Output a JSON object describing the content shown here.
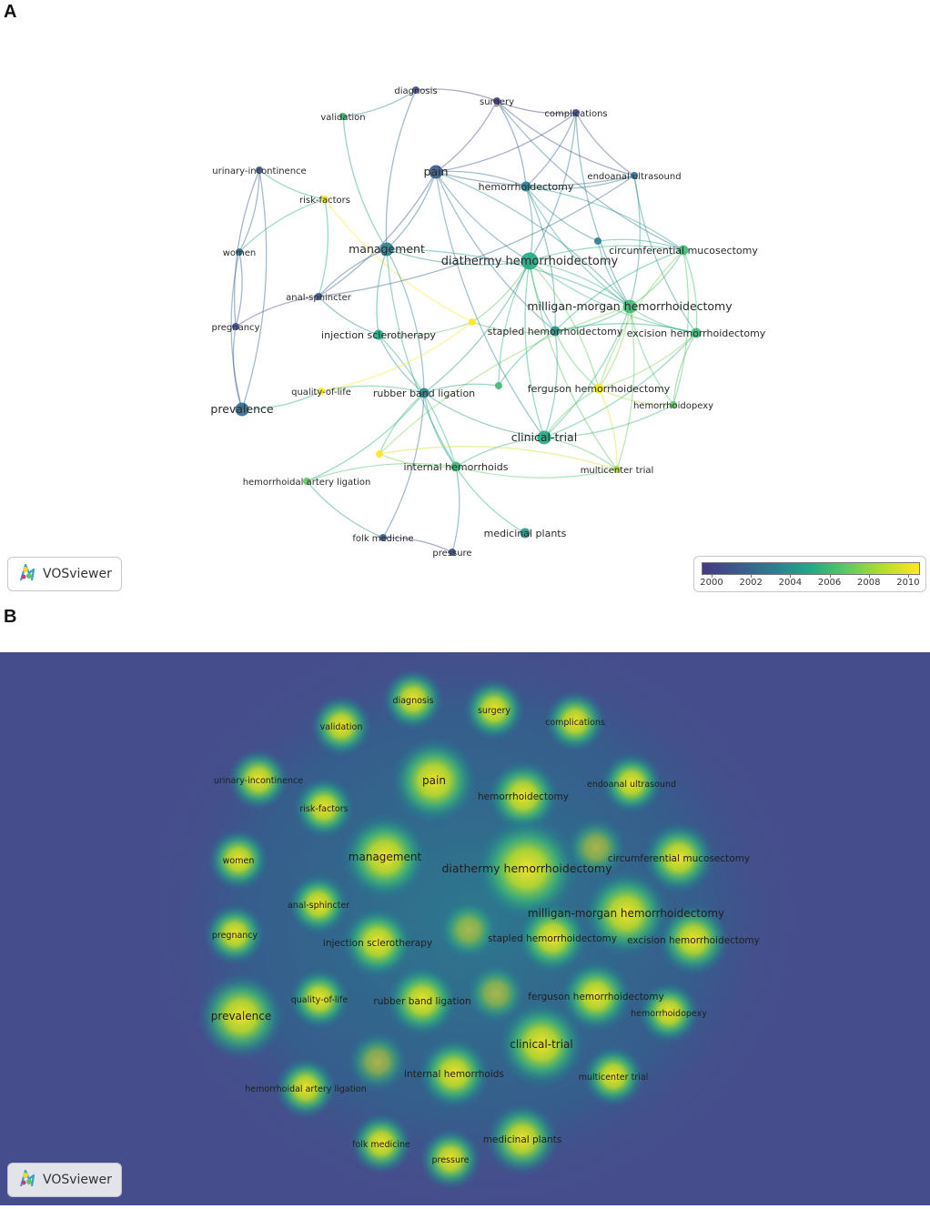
{
  "panels": {
    "a_label": "A",
    "b_label": "B"
  },
  "logo_text": "VOSviewer",
  "colors": {
    "density_bg": "#464d8c",
    "old": "#443a83",
    "new": "#fde725"
  },
  "color_scale": {
    "labels": [
      "2000",
      "2002",
      "2004",
      "2006",
      "2008",
      "2010"
    ]
  },
  "nodes": [
    {
      "id": "diagnosis",
      "label": "diagnosis",
      "year": 2001,
      "weight": 1
    },
    {
      "id": "surgery",
      "label": "surgery",
      "year": 2000,
      "weight": 1
    },
    {
      "id": "validation",
      "label": "validation",
      "year": 2007,
      "weight": 1
    },
    {
      "id": "complications",
      "label": "complications",
      "year": 2001,
      "weight": 1
    },
    {
      "id": "urinary",
      "label": "urinary-incontinence",
      "year": 2002,
      "weight": 1
    },
    {
      "id": "pain",
      "label": "pain",
      "year": 2002,
      "weight": 3
    },
    {
      "id": "hemorrhoidectomy",
      "label": "hemorrhoidectomy",
      "year": 2004,
      "weight": 2
    },
    {
      "id": "endoanal",
      "label": "endoanal ultrasound",
      "year": 2003,
      "weight": 1
    },
    {
      "id": "riskfactors",
      "label": "risk-factors",
      "year": 2010,
      "weight": 1
    },
    {
      "id": "women",
      "label": "women",
      "year": 2003,
      "weight": 1
    },
    {
      "id": "management",
      "label": "management",
      "year": 2004,
      "weight": 3
    },
    {
      "id": "diathermy",
      "label": "diathermy hemorrhoidectomy",
      "year": 2006,
      "weight": 4
    },
    {
      "id": "circumferential",
      "label": "circumferential mucosectomy",
      "year": 2007,
      "weight": 2
    },
    {
      "id": "analsphincter",
      "label": "anal-sphincter",
      "year": 2002,
      "weight": 1
    },
    {
      "id": "milligan",
      "label": "milligan-morgan hemorrhoidectomy",
      "year": 2007,
      "weight": 3
    },
    {
      "id": "pregnancy",
      "label": "pregnancy",
      "year": 2001,
      "weight": 1
    },
    {
      "id": "injection",
      "label": "injection sclerotherapy",
      "year": 2006,
      "weight": 2
    },
    {
      "id": "stapled",
      "label": "stapled hemorrhoidectomy",
      "year": 2005,
      "weight": 2
    },
    {
      "id": "excision",
      "label": "excision hemorrhoidectomy",
      "year": 2007,
      "weight": 2
    },
    {
      "id": "qol",
      "label": "quality-of-life",
      "year": 2010,
      "weight": 1
    },
    {
      "id": "rbl",
      "label": "rubber band ligation",
      "year": 2004,
      "weight": 2
    },
    {
      "id": "ferguson",
      "label": "ferguson hemorrhoidectomy",
      "year": 2010,
      "weight": 2
    },
    {
      "id": "hemorrhoidopexy",
      "label": "hemorrhoidopexy",
      "year": 2008,
      "weight": 1
    },
    {
      "id": "prevalence",
      "label": "prevalence",
      "year": 2003,
      "weight": 3
    },
    {
      "id": "clinicaltrial",
      "label": "clinical-trial",
      "year": 2006,
      "weight": 3
    },
    {
      "id": "internal",
      "label": "internal hemorrhoids",
      "year": 2007,
      "weight": 2
    },
    {
      "id": "multicenter",
      "label": "multicenter trial",
      "year": 2009,
      "weight": 1
    },
    {
      "id": "hal",
      "label": "hemorrhoidal artery ligation",
      "year": 2008,
      "weight": 1
    },
    {
      "id": "medicinal",
      "label": "medicinal plants",
      "year": 2005,
      "weight": 2
    },
    {
      "id": "folk",
      "label": "folk medicine",
      "year": 2002,
      "weight": 1
    },
    {
      "id": "pressure",
      "label": "pressure",
      "year": 2001,
      "weight": 1
    },
    {
      "id": "u1",
      "label": "",
      "year": 2004,
      "weight": 1
    },
    {
      "id": "u2",
      "label": "",
      "year": 2010,
      "weight": 1
    },
    {
      "id": "u3",
      "label": "",
      "year": 2007,
      "weight": 1
    },
    {
      "id": "u4",
      "label": "",
      "year": 2010,
      "weight": 1
    }
  ],
  "edges": [
    [
      "diagnosis",
      "surgery"
    ],
    [
      "diagnosis",
      "management"
    ],
    [
      "diagnosis",
      "validation"
    ],
    [
      "surgery",
      "complications"
    ],
    [
      "surgery",
      "hemorrhoidectomy"
    ],
    [
      "surgery",
      "endoanal"
    ],
    [
      "surgery",
      "pain"
    ],
    [
      "surgery",
      "circumferential"
    ],
    [
      "complications",
      "hemorrhoidectomy"
    ],
    [
      "complications",
      "endoanal"
    ],
    [
      "complications",
      "pain"
    ],
    [
      "complications",
      "milligan"
    ],
    [
      "complications",
      "diathermy"
    ],
    [
      "validation",
      "management"
    ],
    [
      "urinary",
      "women"
    ],
    [
      "urinary",
      "pregnancy"
    ],
    [
      "urinary",
      "prevalence"
    ],
    [
      "urinary",
      "riskfactors"
    ],
    [
      "women",
      "pregnancy"
    ],
    [
      "women",
      "prevalence"
    ],
    [
      "women",
      "riskfactors"
    ],
    [
      "pregnancy",
      "prevalence"
    ],
    [
      "pregnancy",
      "analsphincter"
    ],
    [
      "prevalence",
      "qol"
    ],
    [
      "riskfactors",
      "analsphincter"
    ],
    [
      "riskfactors",
      "u2"
    ],
    [
      "pain",
      "hemorrhoidectomy"
    ],
    [
      "pain",
      "diathermy"
    ],
    [
      "pain",
      "milligan"
    ],
    [
      "pain",
      "stapled"
    ],
    [
      "pain",
      "management"
    ],
    [
      "pain",
      "endoanal"
    ],
    [
      "pain",
      "analsphincter"
    ],
    [
      "pain",
      "clinicaltrial"
    ],
    [
      "hemorrhoidectomy",
      "diathermy"
    ],
    [
      "hemorrhoidectomy",
      "milligan"
    ],
    [
      "hemorrhoidectomy",
      "stapled"
    ],
    [
      "hemorrhoidectomy",
      "endoanal"
    ],
    [
      "hemorrhoidectomy",
      "circumferential"
    ],
    [
      "hemorrhoidectomy",
      "u1"
    ],
    [
      "endoanal",
      "milligan"
    ],
    [
      "endoanal",
      "excision"
    ],
    [
      "endoanal",
      "analsphincter"
    ],
    [
      "management",
      "diathermy"
    ],
    [
      "management",
      "rbl"
    ],
    [
      "management",
      "injection"
    ],
    [
      "management",
      "milligan"
    ],
    [
      "management",
      "internal"
    ],
    [
      "diathermy",
      "milligan"
    ],
    [
      "diathermy",
      "stapled"
    ],
    [
      "diathermy",
      "circumferential"
    ],
    [
      "diathermy",
      "excision"
    ],
    [
      "diathermy",
      "ferguson"
    ],
    [
      "diathermy",
      "clinicaltrial"
    ],
    [
      "diathermy",
      "u2"
    ],
    [
      "diathermy",
      "u3"
    ],
    [
      "diathermy",
      "rbl"
    ],
    [
      "diathermy",
      "multicenter"
    ],
    [
      "milligan",
      "stapled"
    ],
    [
      "milligan",
      "excision"
    ],
    [
      "milligan",
      "ferguson"
    ],
    [
      "milligan",
      "circumferential"
    ],
    [
      "milligan",
      "clinicaltrial"
    ],
    [
      "milligan",
      "hemorrhoidopexy"
    ],
    [
      "milligan",
      "multicenter"
    ],
    [
      "milligan",
      "u4"
    ],
    [
      "circumferential",
      "excision"
    ],
    [
      "circumferential",
      "stapled"
    ],
    [
      "circumferential",
      "hemorrhoidopexy"
    ],
    [
      "circumferential",
      "ferguson"
    ],
    [
      "stapled",
      "excision"
    ],
    [
      "stapled",
      "ferguson"
    ],
    [
      "stapled",
      "clinicaltrial"
    ],
    [
      "stapled",
      "u3"
    ],
    [
      "excision",
      "ferguson"
    ],
    [
      "excision",
      "hemorrhoidopexy"
    ],
    [
      "excision",
      "clinicaltrial"
    ],
    [
      "ferguson",
      "clinicaltrial"
    ],
    [
      "ferguson",
      "multicenter"
    ],
    [
      "ferguson",
      "hemorrhoidopexy"
    ],
    [
      "clinicaltrial",
      "multicenter"
    ],
    [
      "clinicaltrial",
      "internal"
    ],
    [
      "clinicaltrial",
      "rbl"
    ],
    [
      "clinicaltrial",
      "hemorrhoidopexy"
    ],
    [
      "rbl",
      "injection"
    ],
    [
      "rbl",
      "internal"
    ],
    [
      "rbl",
      "u3"
    ],
    [
      "rbl",
      "u4"
    ],
    [
      "rbl",
      "hal"
    ],
    [
      "rbl",
      "qol"
    ],
    [
      "injection",
      "internal"
    ],
    [
      "injection",
      "u2"
    ],
    [
      "injection",
      "analsphincter"
    ],
    [
      "internal",
      "hal"
    ],
    [
      "internal",
      "u4"
    ],
    [
      "internal",
      "multicenter"
    ],
    [
      "internal",
      "pressure"
    ],
    [
      "hal",
      "folk"
    ],
    [
      "folk",
      "pressure"
    ],
    [
      "folk",
      "rbl"
    ],
    [
      "medicinal",
      "internal"
    ],
    [
      "qol",
      "u2"
    ],
    [
      "analsphincter",
      "management"
    ],
    [
      "u1",
      "milligan"
    ],
    [
      "u1",
      "circumferential"
    ],
    [
      "u2",
      "stapled"
    ],
    [
      "u4",
      "multicenter"
    ]
  ]
}
